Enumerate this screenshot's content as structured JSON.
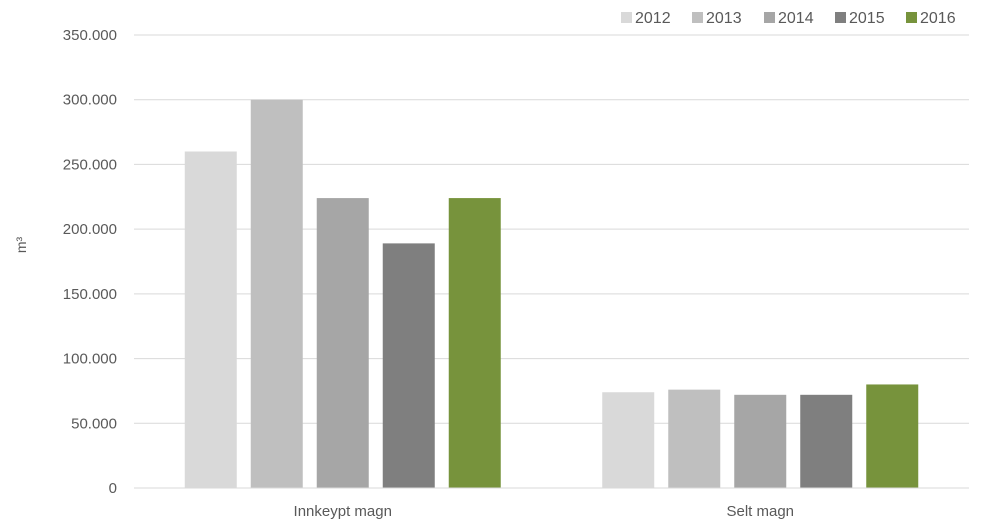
{
  "chart_data": {
    "type": "bar",
    "ylabel": "m³",
    "ylim": [
      0,
      350000
    ],
    "yticks": [
      0,
      50000,
      100000,
      150000,
      200000,
      250000,
      300000,
      350000
    ],
    "ytick_labels": [
      "0",
      "50.000",
      "100.000",
      "150.000",
      "200.000",
      "250.000",
      "300.000",
      "350.000"
    ],
    "categories": [
      "Innkeypt magn",
      "Selt magn"
    ],
    "series": [
      {
        "name": "2012",
        "color": "#d9d9d9",
        "values": [
          260000,
          74000
        ]
      },
      {
        "name": "2013",
        "color": "#bfbfbf",
        "values": [
          300000,
          76000
        ]
      },
      {
        "name": "2014",
        "color": "#a6a6a6",
        "values": [
          224000,
          72000
        ]
      },
      {
        "name": "2015",
        "color": "#7f7f7f",
        "values": [
          189000,
          72000
        ]
      },
      {
        "name": "2016",
        "color": "#77933c",
        "values": [
          224000,
          80000
        ]
      }
    ],
    "grid": true,
    "legend_position": "top-right"
  }
}
